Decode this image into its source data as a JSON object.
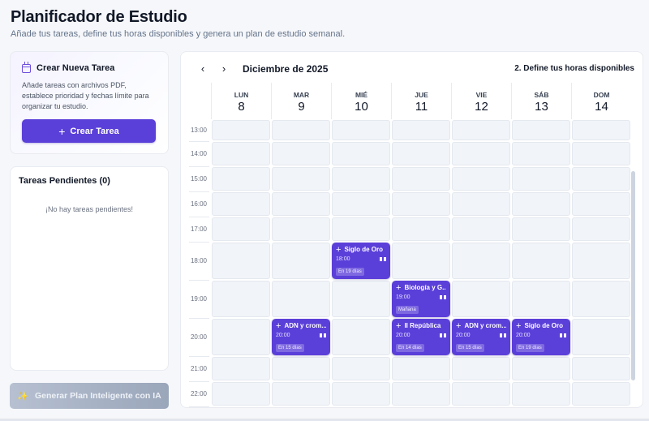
{
  "header": {
    "title": "Planificador de Estudio",
    "subtitle": "Añade tus tareas, define tus horas disponibles y genera un plan de estudio semanal."
  },
  "create_task": {
    "icon": "calendar-icon",
    "title": "Crear Nueva Tarea",
    "description": "Añade tareas con archivos PDF, establece prioridad y fechas límite para organizar tu estudio.",
    "button_icon": "+",
    "button_label": "Crear Tarea"
  },
  "pending": {
    "title": "Tareas Pendientes (0)",
    "empty_text": "¡No hay tareas pendientes!"
  },
  "ai_button": {
    "icon": "✨",
    "label": "Generar Plan Inteligente con IA"
  },
  "calendar": {
    "prev_icon": "‹",
    "next_icon": "›",
    "month": "Diciembre de 2025",
    "step_label": "2. Define tus horas disponibles",
    "days": [
      {
        "name": "LUN",
        "num": "8"
      },
      {
        "name": "MAR",
        "num": "9"
      },
      {
        "name": "MIÉ",
        "num": "10"
      },
      {
        "name": "JUE",
        "num": "11"
      },
      {
        "name": "VIE",
        "num": "12"
      },
      {
        "name": "SÁB",
        "num": "13"
      },
      {
        "name": "DOM",
        "num": "14"
      }
    ],
    "hours": [
      "13:00",
      "14:00",
      "15:00",
      "16:00",
      "17:00",
      "18:00",
      "19:00",
      "20:00",
      "21:00",
      "22:00"
    ],
    "events": [
      {
        "title": "Siglo de Oro",
        "time": "18:00",
        "badge": "En 19 días",
        "day": 2,
        "hour": 5
      },
      {
        "title": "Biología y G...",
        "time": "19:00",
        "badge": "Mañana",
        "day": 3,
        "hour": 6
      },
      {
        "title": "ADN y crom...",
        "time": "20:00",
        "badge": "En 15 días",
        "day": 1,
        "hour": 7
      },
      {
        "title": "II República",
        "time": "20:00",
        "badge": "En 14 días",
        "day": 3,
        "hour": 7
      },
      {
        "title": "ADN y crom...",
        "time": "20:00",
        "badge": "En 15 días",
        "day": 4,
        "hour": 7
      },
      {
        "title": "Siglo de Oro",
        "time": "20:00",
        "badge": "En 19 días",
        "day": 5,
        "hour": 7
      }
    ]
  },
  "colors": {
    "accent": "#5b3fd9",
    "background": "#f6f7fa",
    "cell": "#f1f4f8",
    "disabled_button": "#a9b4c6"
  }
}
